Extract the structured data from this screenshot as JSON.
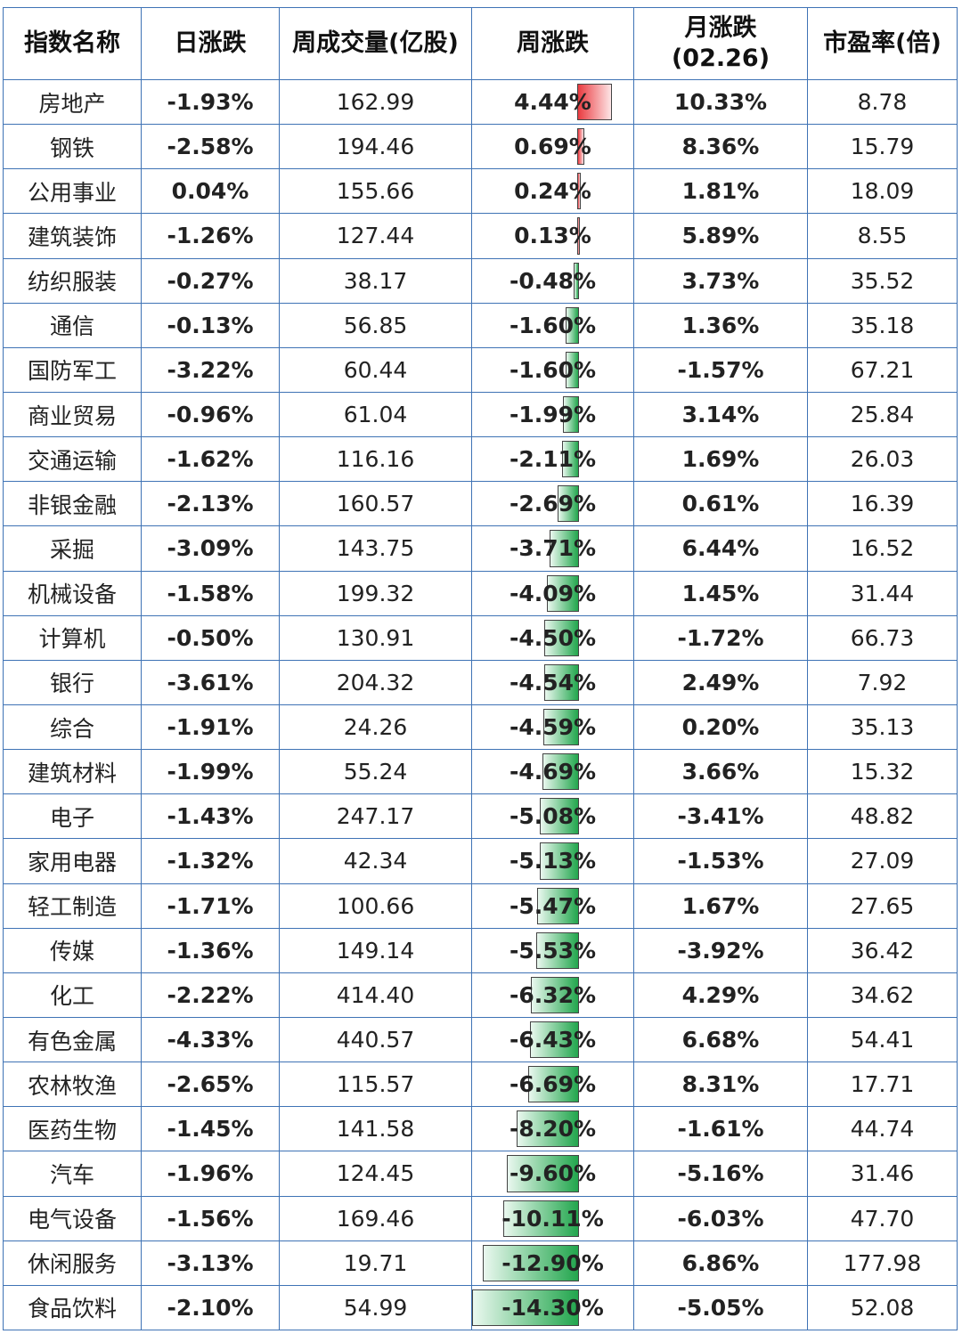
{
  "headers": {
    "name": "指数名称",
    "daily": "日涨跌",
    "volume": "周成交量(亿股)",
    "weekly": "周涨跌",
    "monthly_line1": "月涨跌",
    "monthly_line2": "(02.26)",
    "pe": "市盈率(倍)"
  },
  "colors": {
    "border": "#3f73b5",
    "positive": "#e8141c",
    "negative": "#18b04b"
  },
  "rows": [
    {
      "name": "房地产",
      "daily": "-1.93%",
      "volume": "162.99",
      "weekly": "4.44%",
      "weekly_value": 4.44,
      "monthly": "10.33%",
      "pe": "8.78"
    },
    {
      "name": "钢铁",
      "daily": "-2.58%",
      "volume": "194.46",
      "weekly": "0.69%",
      "weekly_value": 0.69,
      "monthly": "8.36%",
      "pe": "15.79"
    },
    {
      "name": "公用事业",
      "daily": "0.04%",
      "volume": "155.66",
      "weekly": "0.24%",
      "weekly_value": 0.24,
      "monthly": "1.81%",
      "pe": "18.09"
    },
    {
      "name": "建筑装饰",
      "daily": "-1.26%",
      "volume": "127.44",
      "weekly": "0.13%",
      "weekly_value": 0.13,
      "monthly": "5.89%",
      "pe": "8.55"
    },
    {
      "name": "纺织服装",
      "daily": "-0.27%",
      "volume": "38.17",
      "weekly": "-0.48%",
      "weekly_value": -0.48,
      "monthly": "3.73%",
      "pe": "35.52"
    },
    {
      "name": "通信",
      "daily": "-0.13%",
      "volume": "56.85",
      "weekly": "-1.60%",
      "weekly_value": -1.6,
      "monthly": "1.36%",
      "pe": "35.18"
    },
    {
      "name": "国防军工",
      "daily": "-3.22%",
      "volume": "60.44",
      "weekly": "-1.60%",
      "weekly_value": -1.6,
      "monthly": "-1.57%",
      "pe": "67.21"
    },
    {
      "name": "商业贸易",
      "daily": "-0.96%",
      "volume": "61.04",
      "weekly": "-1.99%",
      "weekly_value": -1.99,
      "monthly": "3.14%",
      "pe": "25.84"
    },
    {
      "name": "交通运输",
      "daily": "-1.62%",
      "volume": "116.16",
      "weekly": "-2.11%",
      "weekly_value": -2.11,
      "monthly": "1.69%",
      "pe": "26.03"
    },
    {
      "name": "非银金融",
      "daily": "-2.13%",
      "volume": "160.57",
      "weekly": "-2.69%",
      "weekly_value": -2.69,
      "monthly": "0.61%",
      "pe": "16.39"
    },
    {
      "name": "采掘",
      "daily": "-3.09%",
      "volume": "143.75",
      "weekly": "-3.71%",
      "weekly_value": -3.71,
      "monthly": "6.44%",
      "pe": "16.52"
    },
    {
      "name": "机械设备",
      "daily": "-1.58%",
      "volume": "199.32",
      "weekly": "-4.09%",
      "weekly_value": -4.09,
      "monthly": "1.45%",
      "pe": "31.44"
    },
    {
      "name": "计算机",
      "daily": "-0.50%",
      "volume": "130.91",
      "weekly": "-4.50%",
      "weekly_value": -4.5,
      "monthly": "-1.72%",
      "pe": "66.73"
    },
    {
      "name": "银行",
      "daily": "-3.61%",
      "volume": "204.32",
      "weekly": "-4.54%",
      "weekly_value": -4.54,
      "monthly": "2.49%",
      "pe": "7.92"
    },
    {
      "name": "综合",
      "daily": "-1.91%",
      "volume": "24.26",
      "weekly": "-4.59%",
      "weekly_value": -4.59,
      "monthly": "0.20%",
      "pe": "35.13"
    },
    {
      "name": "建筑材料",
      "daily": "-1.99%",
      "volume": "55.24",
      "weekly": "-4.69%",
      "weekly_value": -4.69,
      "monthly": "3.66%",
      "pe": "15.32"
    },
    {
      "name": "电子",
      "daily": "-1.43%",
      "volume": "247.17",
      "weekly": "-5.08%",
      "weekly_value": -5.08,
      "monthly": "-3.41%",
      "pe": "48.82"
    },
    {
      "name": "家用电器",
      "daily": "-1.32%",
      "volume": "42.34",
      "weekly": "-5.13%",
      "weekly_value": -5.13,
      "monthly": "-1.53%",
      "pe": "27.09"
    },
    {
      "name": "轻工制造",
      "daily": "-1.71%",
      "volume": "100.66",
      "weekly": "-5.47%",
      "weekly_value": -5.47,
      "monthly": "1.67%",
      "pe": "27.65"
    },
    {
      "name": "传媒",
      "daily": "-1.36%",
      "volume": "149.14",
      "weekly": "-5.53%",
      "weekly_value": -5.53,
      "monthly": "-3.92%",
      "pe": "36.42"
    },
    {
      "name": "化工",
      "daily": "-2.22%",
      "volume": "414.40",
      "weekly": "-6.32%",
      "weekly_value": -6.32,
      "monthly": "4.29%",
      "pe": "34.62"
    },
    {
      "name": "有色金属",
      "daily": "-4.33%",
      "volume": "440.57",
      "weekly": "-6.43%",
      "weekly_value": -6.43,
      "monthly": "6.68%",
      "pe": "54.41"
    },
    {
      "name": "农林牧渔",
      "daily": "-2.65%",
      "volume": "115.57",
      "weekly": "-6.69%",
      "weekly_value": -6.69,
      "monthly": "8.31%",
      "pe": "17.71"
    },
    {
      "name": "医药生物",
      "daily": "-1.45%",
      "volume": "141.58",
      "weekly": "-8.20%",
      "weekly_value": -8.2,
      "monthly": "-1.61%",
      "pe": "44.74"
    },
    {
      "name": "汽车",
      "daily": "-1.96%",
      "volume": "124.45",
      "weekly": "-9.60%",
      "weekly_value": -9.6,
      "monthly": "-5.16%",
      "pe": "31.46"
    },
    {
      "name": "电气设备",
      "daily": "-1.56%",
      "volume": "169.46",
      "weekly": "-10.11%",
      "weekly_value": -10.11,
      "monthly": "-6.03%",
      "pe": "47.70"
    },
    {
      "name": "休闲服务",
      "daily": "-3.13%",
      "volume": "19.71",
      "weekly": "-12.90%",
      "weekly_value": -12.9,
      "monthly": "6.86%",
      "pe": "177.98"
    },
    {
      "name": "食品饮料",
      "daily": "-2.10%",
      "volume": "54.99",
      "weekly": "-14.30%",
      "weekly_value": -14.3,
      "monthly": "-5.05%",
      "pe": "52.08"
    }
  ]
}
